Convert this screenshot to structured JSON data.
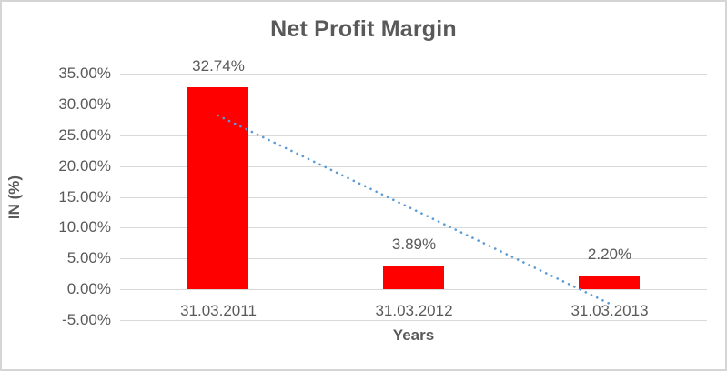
{
  "chart_data": {
    "type": "bar",
    "title": "Net Profit Margin",
    "xlabel": "Years",
    "ylabel": "IN (%)",
    "categories": [
      "31.03.2011",
      "31.03.2012",
      "31.03.2013"
    ],
    "values": [
      32.74,
      3.89,
      2.2
    ],
    "data_labels": [
      "32.74%",
      "3.89%",
      "2.20%"
    ],
    "ylim": [
      -5,
      35
    ],
    "yticks": [
      {
        "value": 35,
        "label": "35.00%"
      },
      {
        "value": 30,
        "label": "30.00%"
      },
      {
        "value": 25,
        "label": "25.00%"
      },
      {
        "value": 20,
        "label": "20.00%"
      },
      {
        "value": 15,
        "label": "15.00%"
      },
      {
        "value": 10,
        "label": "10.00%"
      },
      {
        "value": 5,
        "label": "5.00%"
      },
      {
        "value": 0,
        "label": "0.00%"
      },
      {
        "value": -5,
        "label": "-5.00%"
      }
    ],
    "grid": true,
    "legend": "none",
    "trendline": {
      "type": "linear",
      "style": "dotted",
      "start": {
        "category_index": 0,
        "value": 28.2
      },
      "end": {
        "category_index": 2,
        "value": -2.3
      }
    }
  },
  "colors": {
    "bar": "#ff0000",
    "trendline": "#5b9bd5",
    "text": "#595959",
    "gridline": "#d9d9d9",
    "frame_border": "#d5d5d5",
    "background": "#ffffff"
  }
}
